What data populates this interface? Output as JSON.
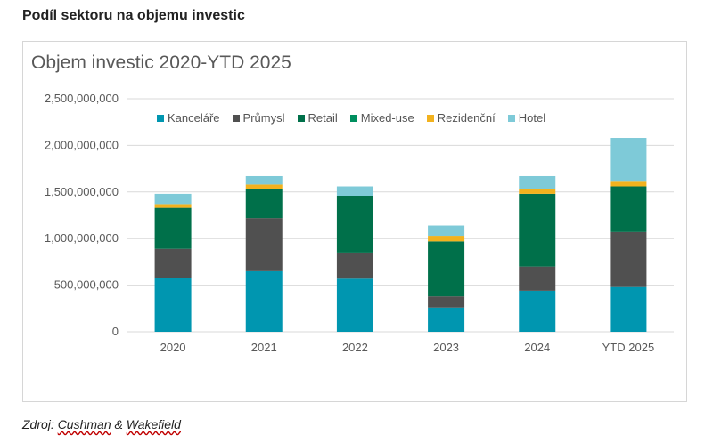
{
  "heading": "Podíl sektoru na objemu investic",
  "source": {
    "prefix": "Zdroj: ",
    "part1": "Cushman",
    "amp": " & ",
    "part2": "Wakefield"
  },
  "chart_data": {
    "type": "bar",
    "stacked": true,
    "title": "Objem investic 2020-YTD 2025",
    "xlabel": "",
    "ylabel": "",
    "ylim": [
      0,
      2500000000
    ],
    "yticks": [
      {
        "value": 0,
        "label": "0"
      },
      {
        "value": 500000000,
        "label": "500,000,000"
      },
      {
        "value": 1000000000,
        "label": "1,000,000,000"
      },
      {
        "value": 1500000000,
        "label": "1,500,000,000"
      },
      {
        "value": 2000000000,
        "label": "2,000,000,000"
      },
      {
        "value": 2500000000,
        "label": "2,500,000,000"
      }
    ],
    "grid": true,
    "legend_position": "top",
    "categories": [
      "2020",
      "2021",
      "2022",
      "2023",
      "2024",
      "YTD 2025"
    ],
    "series": [
      {
        "name": "Kanceláře",
        "color": "#0096b0",
        "values": [
          580000000,
          650000000,
          570000000,
          260000000,
          440000000,
          480000000
        ]
      },
      {
        "name": "Průmysl",
        "color": "#505050",
        "values": [
          310000000,
          570000000,
          280000000,
          120000000,
          260000000,
          590000000
        ]
      },
      {
        "name": "Retail",
        "color": "#00704a",
        "values": [
          440000000,
          310000000,
          610000000,
          590000000,
          780000000,
          490000000
        ]
      },
      {
        "name": "Mixed-use",
        "color": "#008f5f",
        "values": [
          0,
          0,
          0,
          0,
          0,
          0
        ]
      },
      {
        "name": "Rezidenční",
        "color": "#f2b21e",
        "values": [
          40000000,
          50000000,
          0,
          60000000,
          50000000,
          50000000
        ]
      },
      {
        "name": "Hotel",
        "color": "#7ecad8",
        "values": [
          110000000,
          90000000,
          100000000,
          110000000,
          140000000,
          470000000
        ]
      }
    ]
  }
}
